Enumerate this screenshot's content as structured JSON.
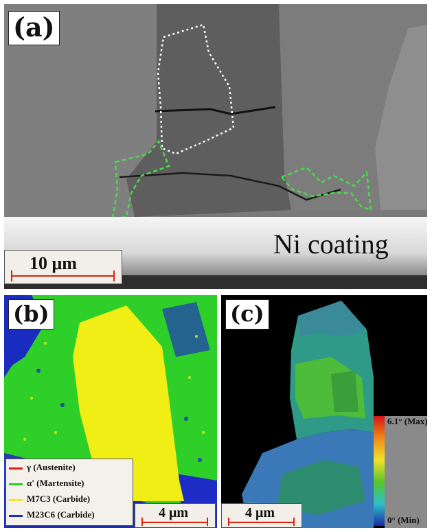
{
  "panel_a": {
    "label": "(a)",
    "coating_label": "Ni coating",
    "scalebar": "10 μm"
  },
  "panel_b": {
    "label": "(b)",
    "scalebar": "4 μm",
    "legend": [
      {
        "text": "γ (Austenite)",
        "color": "#e01818"
      },
      {
        "text": "α' (Martensite)",
        "color": "#2ad11e"
      },
      {
        "text": "M7C3 (Carbide)",
        "color": "#f1e816"
      },
      {
        "text": "M23C6 (Carbide)",
        "color": "#1c2cc4"
      }
    ]
  },
  "panel_c": {
    "label": "(c)",
    "scalebar": "4 μm",
    "colorbar_max": "6.1° (Max)",
    "colorbar_min": "0° (Min)"
  }
}
